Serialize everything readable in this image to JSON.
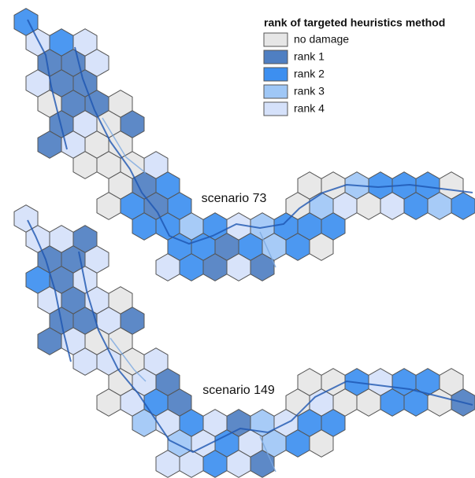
{
  "legend": {
    "title": "rank of targeted heuristics method",
    "items": [
      {
        "label": "no damage",
        "color": "#e6e6e6"
      },
      {
        "label": "rank 1",
        "color": "#4f7fc2"
      },
      {
        "label": "rank 2",
        "color": "#3d8ff0"
      },
      {
        "label": "rank 3",
        "color": "#9fc7f6"
      },
      {
        "label": "rank 4",
        "color": "#d5e1fa"
      }
    ]
  },
  "maps": [
    {
      "label": "scenario 73"
    },
    {
      "label": "scenario 149"
    }
  ]
}
